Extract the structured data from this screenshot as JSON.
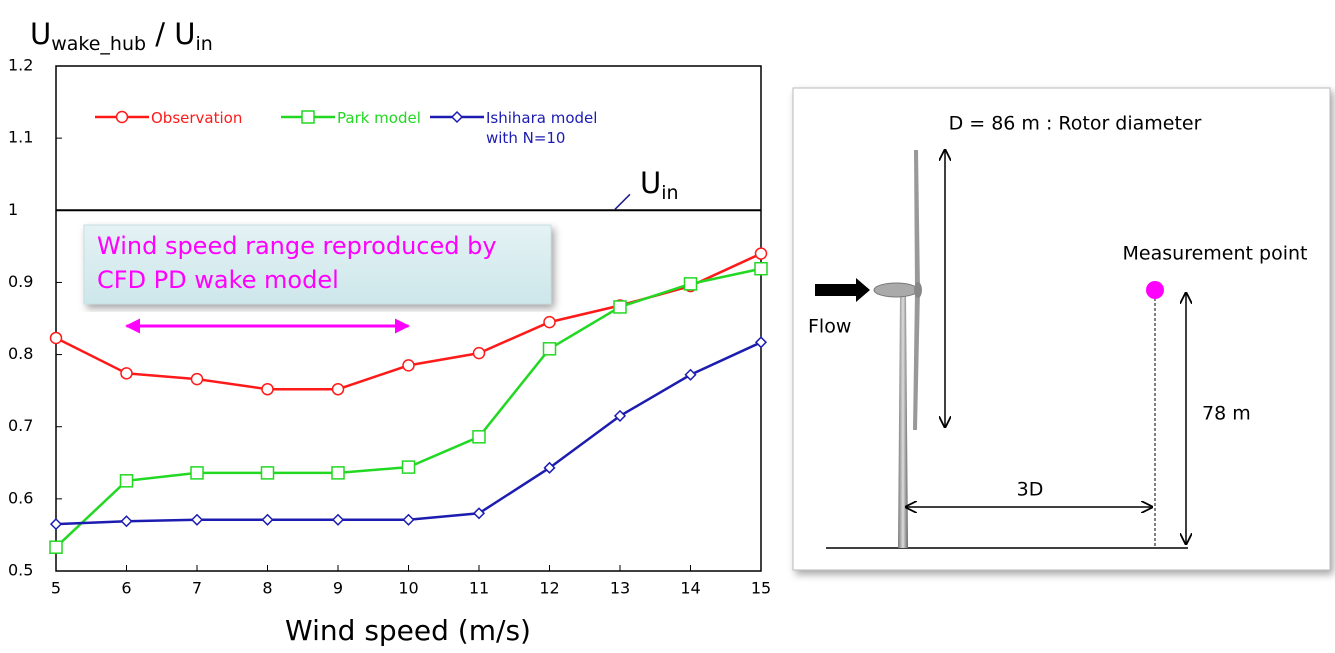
{
  "chart_data": {
    "type": "line",
    "ylabel_parts": [
      "U",
      "wake_hub",
      " / U",
      "in"
    ],
    "xlabel": "Wind speed (m/s)",
    "x": [
      5,
      6,
      7,
      8,
      9,
      10,
      11,
      12,
      13,
      14,
      15
    ],
    "series": [
      {
        "name": "Observation",
        "color": "#ff1a1a",
        "marker": "circle",
        "values": [
          0.823,
          0.774,
          0.766,
          0.752,
          0.752,
          0.785,
          0.802,
          0.845,
          0.868,
          0.895,
          0.94
        ]
      },
      {
        "name": "Park model",
        "color": "#22d822",
        "marker": "square",
        "values": [
          0.533,
          0.625,
          0.636,
          0.636,
          0.636,
          0.644,
          0.686,
          0.808,
          0.866,
          0.898,
          0.919
        ]
      },
      {
        "name": "Ishihara model with N=10",
        "color": "#1c1cb0",
        "marker": "diamond",
        "values": [
          0.565,
          0.569,
          0.571,
          0.571,
          0.571,
          0.571,
          0.58,
          0.643,
          0.715,
          0.772,
          0.817
        ]
      }
    ],
    "xlim": [
      5,
      15
    ],
    "ylim": [
      0.5,
      1.2
    ],
    "xticks": [
      5,
      6,
      7,
      8,
      9,
      10,
      11,
      12,
      13,
      14,
      15
    ],
    "yticks": [
      0.5,
      0.6,
      0.7,
      0.8,
      0.9,
      1,
      1.1,
      1.2
    ],
    "reference_line": {
      "value": 1,
      "label_parts": [
        "U",
        "in"
      ]
    },
    "annotation": {
      "lines": [
        "Wind speed range reproduced by",
        "CFD PD wake model"
      ],
      "range": [
        6,
        10
      ],
      "color": "#ff00ff"
    }
  },
  "diagram": {
    "rotor_label": "D = 86 m : Rotor diameter",
    "measurement_label": "Measurement point",
    "flow_label": "Flow",
    "height_label": "78 m",
    "distance_label": "3D"
  }
}
